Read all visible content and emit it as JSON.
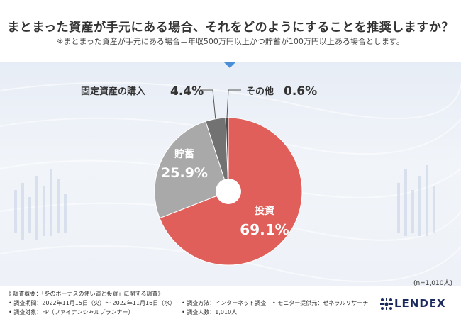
{
  "header": {
    "title": "まとまった資産が手元にある場合、それをどのようにすることを推奨しますか？",
    "subtitle": "※まとまった資産が手元にある場合＝年収500万円以上かつ貯蓄が100万円以上ある場合とします。"
  },
  "chart_data": {
    "type": "pie",
    "slices": [
      {
        "label": "投資",
        "value": 69.1,
        "value_label": "69.1%",
        "color": "#e05f5a"
      },
      {
        "label": "貯蓄",
        "value": 25.9,
        "value_label": "25.9%",
        "color": "#a9a9a9"
      },
      {
        "label": "固定資産の購入",
        "value": 4.4,
        "value_label": "4.4%",
        "color": "#727272"
      },
      {
        "label": "その他",
        "value": 0.6,
        "value_label": "0.6%",
        "color": "#4a4a4a"
      }
    ]
  },
  "sample_size": "(n=1,010人)",
  "footer": {
    "overview": "《 調査概要：「冬のボーナスの使い道と投資」に関する調査》",
    "period": "• 調査期間：2022年11月15日（火）〜 2022年11月16日（水）",
    "method": "• 調査方法：インターネット調査",
    "provider": "• モニター提供元：ゼネラルリサーチ",
    "target": "• 調査対象：FP（ファイナンシャルプランナー）",
    "count": "• 調査人数：1,010人"
  },
  "brand": {
    "name": "LENDEX",
    "color": "#1a2a5e"
  }
}
